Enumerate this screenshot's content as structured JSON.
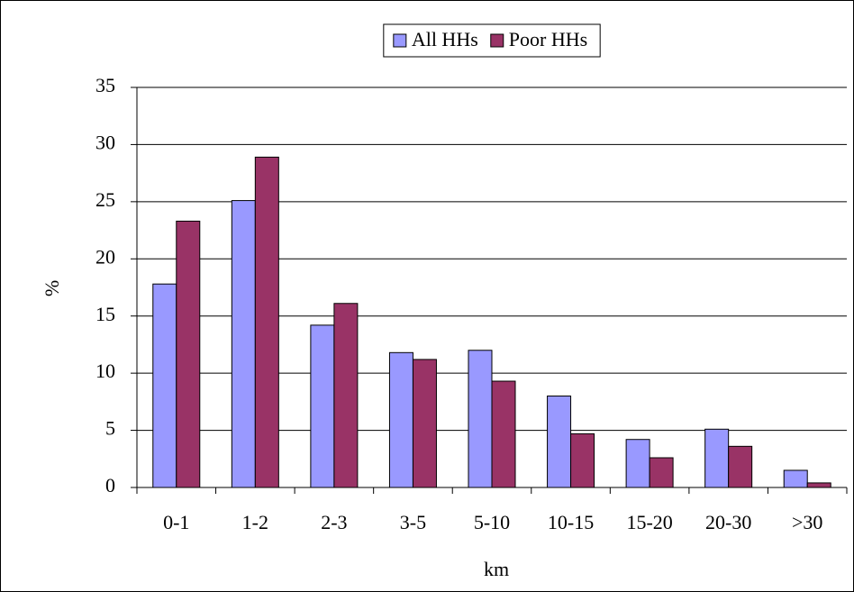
{
  "chart_data": {
    "type": "bar",
    "categories": [
      "0-1",
      "1-2",
      "2-3",
      "3-5",
      "5-10",
      "10-15",
      "15-20",
      "20-30",
      ">30"
    ],
    "series": [
      {
        "name": "All HHs",
        "color": "#9999ff",
        "values": [
          17.8,
          25.1,
          14.2,
          11.8,
          12.0,
          8.0,
          4.2,
          5.1,
          1.5
        ]
      },
      {
        "name": "Poor HHs",
        "color": "#993366",
        "values": [
          23.3,
          28.9,
          16.1,
          11.2,
          9.3,
          4.7,
          2.6,
          3.6,
          0.4
        ]
      }
    ],
    "x_label": "km",
    "y_label": "%",
    "ylim": [
      0,
      35
    ],
    "yticks": [
      0,
      5,
      10,
      15,
      20,
      25,
      30,
      35
    ],
    "grid": true,
    "legend": "top"
  }
}
